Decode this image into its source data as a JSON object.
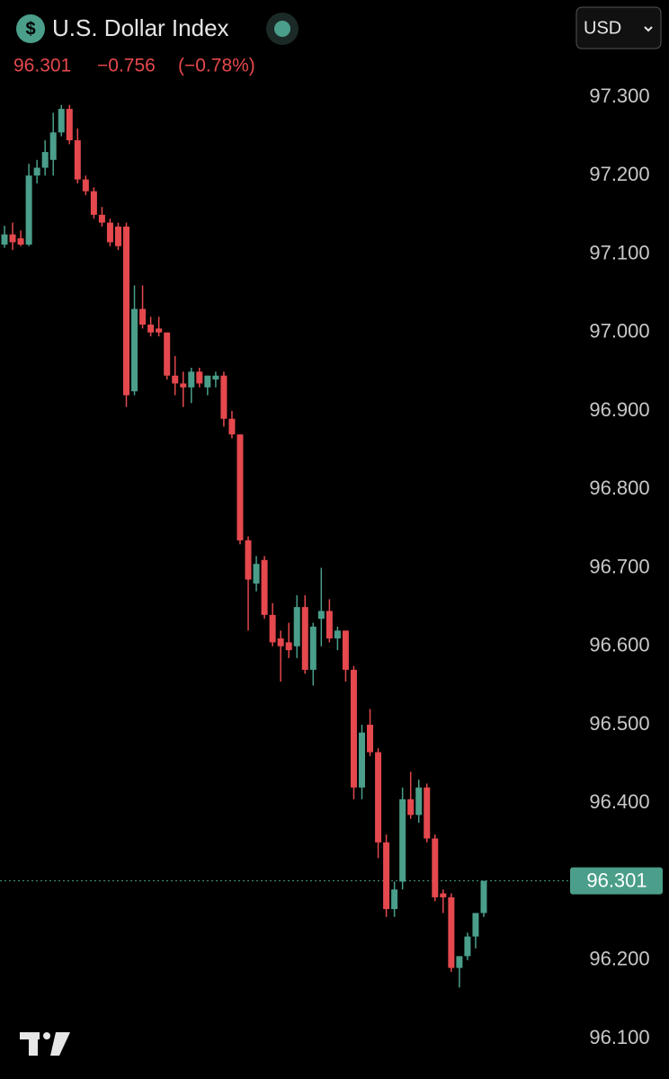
{
  "chart_data": {
    "type": "candlestick",
    "title": "U.S. Dollar Index",
    "currency": "USD",
    "last_price": {
      "value": 96.301,
      "label": "96.301"
    },
    "change": "−0.756",
    "change_percent": "(−0.78%)",
    "up_color": "#4a9e8a",
    "down_color": "#e5484d",
    "ylim": [
      96.1,
      97.3
    ],
    "yticks": [
      {
        "value": 97.3,
        "label": "97.300"
      },
      {
        "value": 97.2,
        "label": "97.200"
      },
      {
        "value": 97.1,
        "label": "97.100"
      },
      {
        "value": 97.0,
        "label": "97.000"
      },
      {
        "value": 96.9,
        "label": "96.900"
      },
      {
        "value": 96.8,
        "label": "96.800"
      },
      {
        "value": 96.7,
        "label": "96.700"
      },
      {
        "value": 96.6,
        "label": "96.600"
      },
      {
        "value": 96.5,
        "label": "96.500"
      },
      {
        "value": 96.4,
        "label": "96.400"
      },
      {
        "value": 96.3,
        "label": "96.300"
      },
      {
        "value": 96.2,
        "label": "96.200"
      },
      {
        "value": 96.1,
        "label": "96.100"
      }
    ],
    "open": [
      97.112,
      97.125,
      97.12,
      97.112,
      97.2,
      97.21,
      97.22,
      97.255,
      97.285,
      97.245,
      97.195,
      97.18,
      97.15,
      97.14,
      97.135,
      97.135,
      96.925,
      97.03,
      97.01,
      97.005,
      97.0,
      96.945,
      96.935,
      96.93,
      96.95,
      96.93,
      96.94,
      96.945,
      96.89,
      96.87,
      96.735,
      96.68,
      96.71,
      96.64,
      96.61,
      96.605,
      96.6,
      96.65,
      96.57,
      96.635,
      96.645,
      96.61,
      96.62,
      96.57,
      96.42,
      96.5,
      96.465,
      96.35,
      96.265,
      96.3,
      96.405,
      96.385,
      96.42,
      96.355,
      96.285,
      96.28,
      96.19,
      96.205,
      96.23,
      96.26
    ],
    "high": [
      97.136,
      97.14,
      97.13,
      97.215,
      97.22,
      97.245,
      97.28,
      97.29,
      97.29,
      97.26,
      97.2,
      97.185,
      97.16,
      97.145,
      97.14,
      97.14,
      97.06,
      97.06,
      97.02,
      97.02,
      97.0,
      96.97,
      96.95,
      96.955,
      96.955,
      96.945,
      96.95,
      96.95,
      96.9,
      96.87,
      96.74,
      96.715,
      96.715,
      96.655,
      96.62,
      96.63,
      96.665,
      96.665,
      96.63,
      96.7,
      96.66,
      96.625,
      96.62,
      96.575,
      96.5,
      96.52,
      96.47,
      96.36,
      96.3,
      96.42,
      96.44,
      96.43,
      96.425,
      96.36,
      96.29,
      96.285,
      96.205,
      96.235,
      96.26,
      96.301
    ],
    "low": [
      97.108,
      97.105,
      97.11,
      97.11,
      97.19,
      97.2,
      97.2,
      97.25,
      97.24,
      97.19,
      97.175,
      97.145,
      97.135,
      97.11,
      97.105,
      96.905,
      96.92,
      97.005,
      96.995,
      96.995,
      96.94,
      96.92,
      96.905,
      96.91,
      96.93,
      96.92,
      96.93,
      96.88,
      96.865,
      96.73,
      96.62,
      96.67,
      96.635,
      96.6,
      96.555,
      96.585,
      96.585,
      96.565,
      96.55,
      96.6,
      96.605,
      96.595,
      96.555,
      96.405,
      96.405,
      96.46,
      96.33,
      96.255,
      96.255,
      96.29,
      96.38,
      96.375,
      96.35,
      96.275,
      96.26,
      96.185,
      96.165,
      96.2,
      96.215,
      96.255
    ],
    "close": [
      97.125,
      97.115,
      97.112,
      97.2,
      97.21,
      97.23,
      97.255,
      97.285,
      97.245,
      97.195,
      97.18,
      97.15,
      97.14,
      97.115,
      97.11,
      96.92,
      97.03,
      97.01,
      97.0,
      97.0,
      96.945,
      96.935,
      96.93,
      96.95,
      96.935,
      96.945,
      96.945,
      96.89,
      96.87,
      96.735,
      96.685,
      96.705,
      96.64,
      96.605,
      96.6,
      96.595,
      96.65,
      96.57,
      96.625,
      96.645,
      96.61,
      96.62,
      96.57,
      96.42,
      96.49,
      96.465,
      96.35,
      96.265,
      96.29,
      96.405,
      96.385,
      96.42,
      96.355,
      96.28,
      96.28,
      96.19,
      96.205,
      96.23,
      96.26,
      96.301
    ]
  }
}
